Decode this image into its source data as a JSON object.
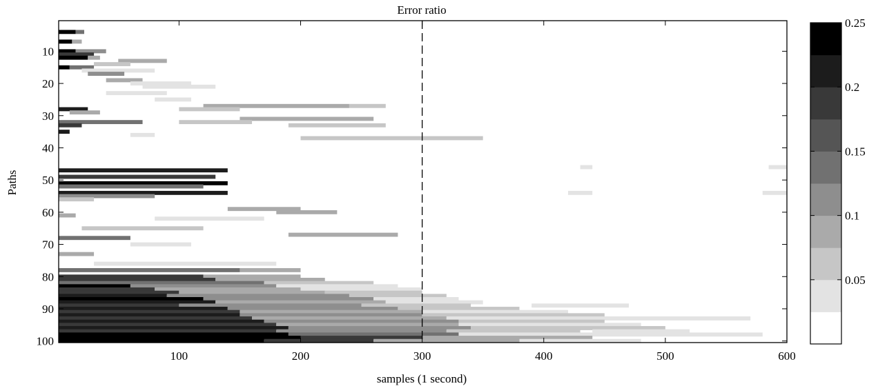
{
  "chart_data": {
    "type": "heatmap",
    "title": "Error ratio",
    "xlabel": "samples (1 second)",
    "ylabel": "Paths",
    "xlim": [
      1,
      600
    ],
    "ylim": [
      1,
      100
    ],
    "y_direction": "reversed",
    "x_ticks": [
      "100",
      "200",
      "300",
      "400",
      "500",
      "600"
    ],
    "x_tick_values": [
      100,
      200,
      300,
      400,
      500,
      600
    ],
    "y_ticks": [
      "10",
      "20",
      "30",
      "40",
      "50",
      "60",
      "70",
      "80",
      "90",
      "100"
    ],
    "y_tick_values": [
      10,
      20,
      30,
      40,
      50,
      60,
      70,
      80,
      90,
      100
    ],
    "reference_line": {
      "x": 300,
      "style": "dashed"
    },
    "colorbar": {
      "min": 0,
      "max": 0.25,
      "levels": 10,
      "tick_labels": [
        "0.05",
        "0.1",
        "0.15",
        "0.2",
        "0.25"
      ],
      "tick_values": [
        0.05,
        0.1,
        0.15,
        0.2,
        0.25
      ],
      "colormap": "grayscale (white = 0, black = 0.25)"
    },
    "segments_note": "Each segment: path, x_start, x_end, error ratio (approximate, read off the image)",
    "segments": [
      [
        4,
        1,
        15,
        0.25
      ],
      [
        4,
        15,
        22,
        0.15
      ],
      [
        7,
        1,
        12,
        0.25
      ],
      [
        7,
        12,
        20,
        0.1
      ],
      [
        10,
        1,
        15,
        0.25
      ],
      [
        10,
        15,
        40,
        0.12
      ],
      [
        11,
        1,
        30,
        0.2
      ],
      [
        12,
        1,
        25,
        0.25
      ],
      [
        12,
        25,
        35,
        0.1
      ],
      [
        13,
        50,
        90,
        0.08
      ],
      [
        14,
        30,
        60,
        0.06
      ],
      [
        15,
        1,
        10,
        0.25
      ],
      [
        15,
        10,
        30,
        0.15
      ],
      [
        16,
        20,
        80,
        0.05
      ],
      [
        17,
        25,
        55,
        0.12
      ],
      [
        19,
        40,
        70,
        0.08
      ],
      [
        20,
        60,
        110,
        0.05
      ],
      [
        21,
        70,
        130,
        0.04
      ],
      [
        23,
        40,
        90,
        0.05
      ],
      [
        25,
        80,
        110,
        0.04
      ],
      [
        27,
        120,
        240,
        0.1
      ],
      [
        27,
        240,
        270,
        0.06
      ],
      [
        28,
        1,
        25,
        0.22
      ],
      [
        28,
        100,
        150,
        0.06
      ],
      [
        29,
        10,
        35,
        0.1
      ],
      [
        31,
        150,
        260,
        0.08
      ],
      [
        32,
        1,
        70,
        0.14
      ],
      [
        32,
        100,
        160,
        0.06
      ],
      [
        33,
        1,
        20,
        0.2
      ],
      [
        33,
        190,
        270,
        0.06
      ],
      [
        35,
        1,
        10,
        0.22
      ],
      [
        36,
        60,
        80,
        0.05
      ],
      [
        37,
        200,
        350,
        0.06
      ],
      [
        47,
        1,
        140,
        0.22
      ],
      [
        49,
        1,
        130,
        0.18
      ],
      [
        51,
        1,
        140,
        0.25
      ],
      [
        52,
        1,
        120,
        0.15
      ],
      [
        54,
        1,
        140,
        0.22
      ],
      [
        55,
        1,
        80,
        0.12
      ],
      [
        56,
        1,
        30,
        0.06
      ],
      [
        59,
        140,
        200,
        0.1
      ],
      [
        60,
        180,
        230,
        0.08
      ],
      [
        61,
        1,
        15,
        0.1
      ],
      [
        62,
        80,
        170,
        0.05
      ],
      [
        65,
        20,
        120,
        0.06
      ],
      [
        67,
        190,
        280,
        0.08
      ],
      [
        68,
        1,
        60,
        0.15
      ],
      [
        70,
        60,
        110,
        0.05
      ],
      [
        73,
        1,
        30,
        0.08
      ],
      [
        76,
        30,
        180,
        0.05
      ],
      [
        78,
        1,
        150,
        0.15
      ],
      [
        78,
        150,
        200,
        0.08
      ],
      [
        80,
        1,
        120,
        0.2
      ],
      [
        80,
        120,
        200,
        0.1
      ],
      [
        81,
        1,
        130,
        0.18
      ],
      [
        81,
        130,
        220,
        0.08
      ],
      [
        82,
        1,
        170,
        0.15
      ],
      [
        82,
        170,
        260,
        0.06
      ],
      [
        83,
        1,
        60,
        0.25
      ],
      [
        83,
        60,
        180,
        0.12
      ],
      [
        83,
        180,
        280,
        0.05
      ],
      [
        84,
        1,
        80,
        0.2
      ],
      [
        84,
        80,
        200,
        0.1
      ],
      [
        84,
        200,
        300,
        0.05
      ],
      [
        85,
        1,
        100,
        0.2
      ],
      [
        85,
        100,
        220,
        0.1
      ],
      [
        85,
        220,
        300,
        0.06
      ],
      [
        86,
        1,
        90,
        0.22
      ],
      [
        86,
        90,
        240,
        0.12
      ],
      [
        86,
        240,
        320,
        0.06
      ],
      [
        87,
        1,
        120,
        0.25
      ],
      [
        87,
        120,
        260,
        0.12
      ],
      [
        87,
        260,
        330,
        0.05
      ],
      [
        88,
        1,
        130,
        0.22
      ],
      [
        88,
        130,
        270,
        0.1
      ],
      [
        88,
        270,
        350,
        0.05
      ],
      [
        89,
        1,
        100,
        0.2
      ],
      [
        89,
        100,
        250,
        0.12
      ],
      [
        89,
        250,
        340,
        0.06
      ],
      [
        89,
        390,
        470,
        0.04
      ],
      [
        90,
        1,
        140,
        0.22
      ],
      [
        90,
        140,
        280,
        0.12
      ],
      [
        90,
        280,
        380,
        0.06
      ],
      [
        91,
        1,
        150,
        0.2
      ],
      [
        91,
        150,
        300,
        0.1
      ],
      [
        91,
        300,
        420,
        0.05
      ],
      [
        92,
        1,
        150,
        0.22
      ],
      [
        92,
        150,
        300,
        0.12
      ],
      [
        92,
        300,
        450,
        0.06
      ],
      [
        93,
        1,
        160,
        0.2
      ],
      [
        93,
        160,
        320,
        0.1
      ],
      [
        93,
        320,
        570,
        0.05
      ],
      [
        94,
        1,
        170,
        0.22
      ],
      [
        94,
        170,
        330,
        0.12
      ],
      [
        94,
        330,
        450,
        0.06
      ],
      [
        95,
        1,
        180,
        0.2
      ],
      [
        95,
        180,
        330,
        0.1
      ],
      [
        95,
        330,
        480,
        0.05
      ],
      [
        96,
        1,
        190,
        0.22
      ],
      [
        96,
        190,
        340,
        0.12
      ],
      [
        96,
        340,
        500,
        0.06
      ],
      [
        97,
        1,
        180,
        0.2
      ],
      [
        97,
        180,
        320,
        0.12
      ],
      [
        97,
        320,
        430,
        0.06
      ],
      [
        97,
        440,
        520,
        0.04
      ],
      [
        98,
        1,
        190,
        0.25
      ],
      [
        98,
        190,
        330,
        0.15
      ],
      [
        98,
        330,
        580,
        0.05
      ],
      [
        99,
        1,
        200,
        0.25
      ],
      [
        99,
        200,
        300,
        0.18
      ],
      [
        99,
        300,
        440,
        0.08
      ],
      [
        100,
        1,
        170,
        0.25
      ],
      [
        100,
        170,
        260,
        0.2
      ],
      [
        100,
        260,
        380,
        0.1
      ],
      [
        100,
        380,
        480,
        0.05
      ],
      [
        46,
        430,
        440,
        0.04
      ],
      [
        46,
        585,
        600,
        0.05
      ],
      [
        54,
        420,
        440,
        0.05
      ],
      [
        54,
        580,
        600,
        0.05
      ]
    ]
  }
}
